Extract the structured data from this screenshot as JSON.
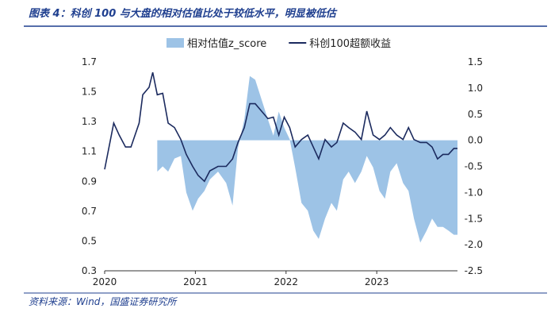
{
  "chart_data": {
    "type": "line-area",
    "title": "图表 4：科创 100 与大盘的相对估值比处于较低水平，明显被低估",
    "source": "资料来源：Wind，国盛证券研究所",
    "x": [
      2020.0,
      2020.1,
      2020.16,
      2020.23,
      2020.29,
      2020.38,
      2020.42,
      2020.49,
      2020.53,
      2020.58,
      2020.64,
      2020.7,
      2020.77,
      2020.84,
      2020.9,
      2020.97,
      2021.03,
      2021.1,
      2021.16,
      2021.25,
      2021.34,
      2021.41,
      2021.47,
      2021.54,
      2021.6,
      2021.66,
      2021.73,
      2021.8,
      2021.86,
      2021.92,
      2021.98,
      2022.04,
      2022.1,
      2022.17,
      2022.24,
      2022.3,
      2022.36,
      2022.43,
      2022.5,
      2022.56,
      2022.63,
      2022.69,
      2022.76,
      2022.83,
      2022.89,
      2022.96,
      2023.03,
      2023.09,
      2023.15,
      2023.22,
      2023.29,
      2023.35,
      2023.41,
      2023.48,
      2023.55,
      2023.61,
      2023.67,
      2023.73,
      2023.79,
      2023.85,
      2023.89
    ],
    "series": [
      {
        "name": "相对估值z_score",
        "kind": "area",
        "axis": "y2",
        "color": "#9dc3e6",
        "values": [
          null,
          null,
          null,
          null,
          null,
          null,
          null,
          null,
          null,
          -0.6,
          -0.5,
          -0.6,
          -0.35,
          -0.3,
          -1.0,
          -1.35,
          -1.12,
          -0.97,
          -0.75,
          -0.6,
          -0.82,
          -1.25,
          -0.15,
          0.4,
          1.23,
          1.16,
          0.78,
          0.4,
          0.09,
          0.55,
          0.24,
          0.02,
          -0.52,
          -1.2,
          -1.35,
          -1.73,
          -1.89,
          -1.5,
          -1.2,
          -1.35,
          -0.75,
          -0.6,
          -0.82,
          -0.6,
          -0.3,
          -0.52,
          -0.97,
          -1.12,
          -0.6,
          -0.44,
          -0.82,
          -0.97,
          -1.5,
          -1.96,
          -1.73,
          -1.5,
          -1.66,
          -1.66,
          -1.73,
          -1.81,
          -1.81
        ]
      },
      {
        "name": "科创100超额收益",
        "kind": "line",
        "color": "#1b2a5e",
        "values": [
          0.98,
          1.29,
          1.21,
          1.13,
          1.13,
          1.29,
          1.48,
          1.53,
          1.63,
          1.48,
          1.49,
          1.29,
          1.26,
          1.18,
          1.08,
          1.0,
          0.94,
          0.9,
          0.97,
          1.0,
          1.0,
          1.05,
          1.16,
          1.26,
          1.42,
          1.42,
          1.37,
          1.32,
          1.33,
          1.21,
          1.33,
          1.26,
          1.13,
          1.18,
          1.21,
          1.13,
          1.05,
          1.18,
          1.13,
          1.16,
          1.29,
          1.26,
          1.23,
          1.18,
          1.37,
          1.21,
          1.18,
          1.21,
          1.26,
          1.21,
          1.18,
          1.26,
          1.18,
          1.16,
          1.16,
          1.13,
          1.05,
          1.08,
          1.08,
          1.12,
          1.12
        ]
      }
    ],
    "xlim": [
      2020,
      2023.89
    ],
    "xticks": [
      2020,
      2021,
      2022,
      2023
    ],
    "ylim": [
      0.3,
      1.7
    ],
    "yticks": [
      0.3,
      0.5,
      0.7,
      0.9,
      1.1,
      1.3,
      1.5,
      1.7
    ],
    "y2lim": [
      -2.5,
      1.5
    ],
    "y2ticks": [
      -2.5,
      {
        "value": -2,
        "label": "-2.0"
      },
      -1.5,
      {
        "value": -1,
        "label": "-1.0"
      },
      -0.5,
      {
        "value": 0,
        "label": "0.0"
      },
      0.5,
      {
        "value": 1,
        "label": "1.0"
      },
      1.5
    ],
    "legend": "top"
  }
}
